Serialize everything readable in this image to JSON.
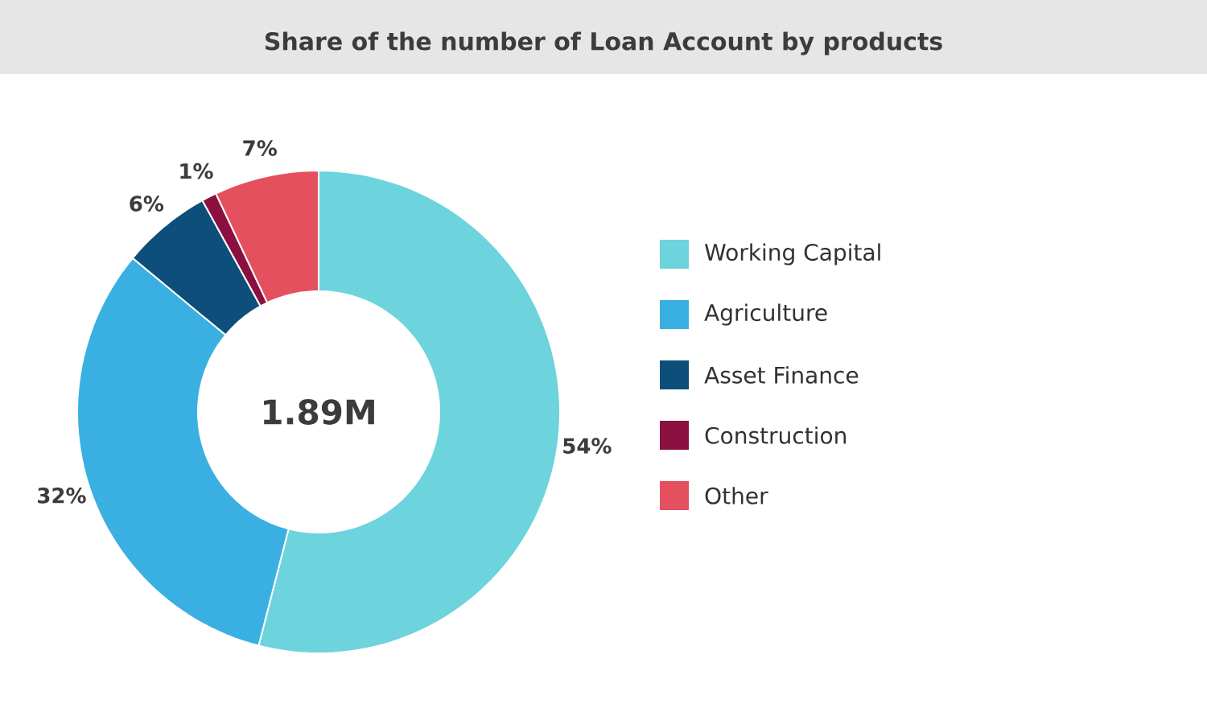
{
  "chart_data": {
    "type": "donut",
    "title": "Share of the number of Loan Account by products",
    "categories": [
      "Working Capital",
      "Agriculture",
      "Asset Finance",
      "Construction",
      "Other"
    ],
    "values": [
      54,
      32,
      6,
      1,
      7
    ],
    "colors": [
      "#6dd3dc",
      "#3ab0e2",
      "#0d4f7a",
      "#8b1040",
      "#e5505e"
    ],
    "value_labels": [
      "54%",
      "32%",
      "6%",
      "1%",
      "7%"
    ],
    "annotations": [
      "1.89M"
    ],
    "legend": "right"
  }
}
